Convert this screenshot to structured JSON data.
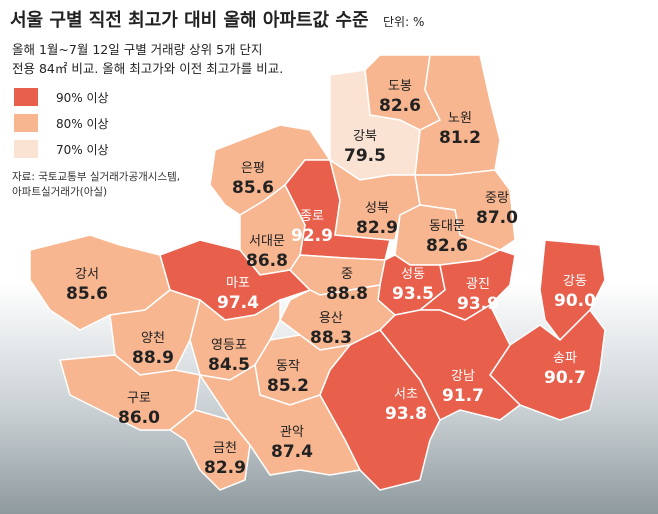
{
  "header": {
    "title": "서울 구별 직전 최고가 대비 올해 아파트값 수준",
    "unit": "단위: %",
    "subtitle": [
      "올해 1월~7월 12일 구별 거래량 상위 5개 단지",
      "전용 84㎡ 비교. 올해 최고가와 이전 최고가를 비교."
    ]
  },
  "legend": [
    {
      "label": "90% 이상",
      "color": "#e8604c"
    },
    {
      "label": "80% 이상",
      "color": "#f7b690"
    },
    {
      "label": "70% 이상",
      "color": "#fbe3d4"
    }
  ],
  "source": [
    "자료: 국토교통부 실거래가공개시스템,",
    "아파트실거래가(아실)"
  ],
  "districts": [
    {
      "name": "도봉",
      "value": 82.6,
      "color": "#f7b690"
    },
    {
      "name": "노원",
      "value": 81.2,
      "color": "#f7b690"
    },
    {
      "name": "강북",
      "value": 79.5,
      "color": "#fbe3d4"
    },
    {
      "name": "은평",
      "value": 85.6,
      "color": "#f7b690"
    },
    {
      "name": "종로",
      "value": 92.9,
      "color": "#e8604c"
    },
    {
      "name": "성북",
      "value": 82.9,
      "color": "#f7b690"
    },
    {
      "name": "중랑",
      "value": 87,
      "value_label": "87.0",
      "color": "#f7b690"
    },
    {
      "name": "동대문",
      "value": 82.6,
      "color": "#f7b690"
    },
    {
      "name": "서대문",
      "value": 86.8,
      "color": "#f7b690"
    },
    {
      "name": "강서",
      "value": 85.6,
      "color": "#f7b690"
    },
    {
      "name": "마포",
      "value": 97.4,
      "color": "#e8604c"
    },
    {
      "name": "중",
      "value": 88.8,
      "color": "#f7b690"
    },
    {
      "name": "성동",
      "value": 93.5,
      "color": "#e8604c"
    },
    {
      "name": "광진",
      "value": 93.9,
      "color": "#e8604c"
    },
    {
      "name": "강동",
      "value": 90,
      "value_label": "90.0",
      "color": "#e8604c"
    },
    {
      "name": "용산",
      "value": 88.3,
      "color": "#f7b690"
    },
    {
      "name": "양천",
      "value": 88.9,
      "color": "#f7b690"
    },
    {
      "name": "영등포",
      "value": 84.5,
      "color": "#f7b690"
    },
    {
      "name": "동작",
      "value": 85.2,
      "color": "#f7b690"
    },
    {
      "name": "송파",
      "value": 90.7,
      "color": "#e8604c"
    },
    {
      "name": "구로",
      "value": 86,
      "value_label": "86.0",
      "color": "#f7b690"
    },
    {
      "name": "강남",
      "value": 91.7,
      "color": "#e8604c"
    },
    {
      "name": "서초",
      "value": 93.8,
      "color": "#e8604c"
    },
    {
      "name": "금천",
      "value": 82.9,
      "color": "#f7b690"
    },
    {
      "name": "관악",
      "value": 87.4,
      "color": "#f7b690"
    }
  ]
}
